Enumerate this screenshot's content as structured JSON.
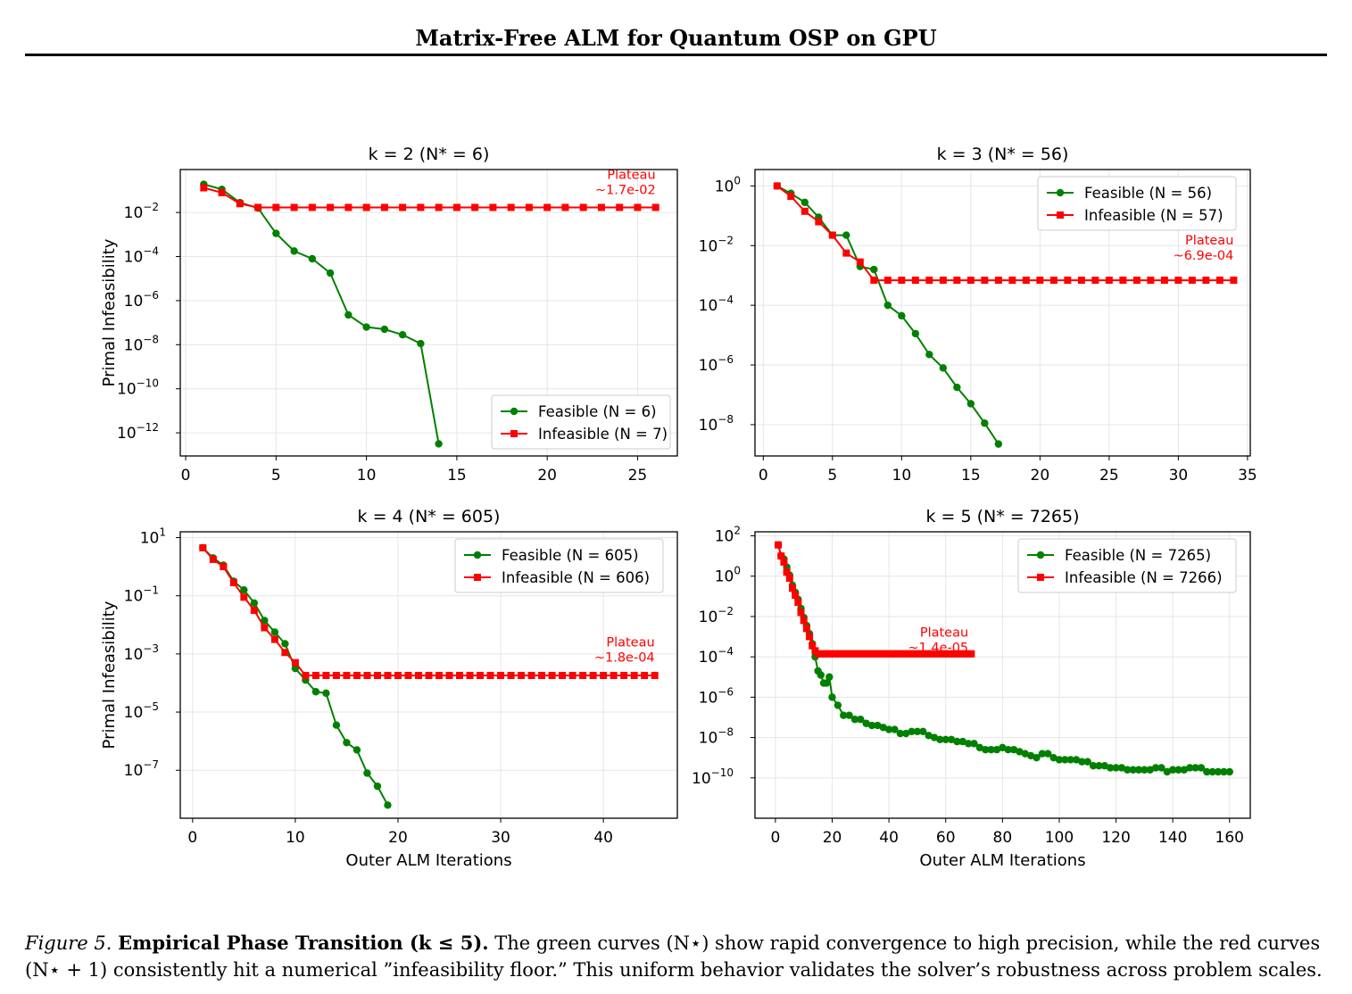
{
  "header": {
    "title": "Matrix-Free ALM for Quantum OSP on GPU"
  },
  "caption": {
    "label": "Figure 5.",
    "bold_text": "Empirical Phase Transition (k ≤ 5).",
    "text": " The green curves (N⋆) show rapid convergence to high precision, while the red curves (N⋆ + 1) consistently hit a numerical ”infeasibility floor.” This uniform behavior validates the solver’s robustness across problem scales."
  },
  "colors": {
    "feasible": "#008000",
    "infeasible": "#ff0000",
    "grid": "#e6e6e6",
    "plateau_text": "#ff0000"
  },
  "chart_data": [
    {
      "type": "line",
      "title": "k = 2 (N* = 6)",
      "xlabel": "",
      "ylabel": "Primal Infeasibility",
      "yscale": "log",
      "xlim": [
        -0.3,
        27.2
      ],
      "ylim_exp": [
        -13.05,
        -0.05
      ],
      "xticks": [
        0,
        5,
        10,
        15,
        20,
        25
      ],
      "yticks_exp": [
        -12,
        -10,
        -8,
        -6,
        -4,
        -2
      ],
      "grid": true,
      "legend": "bottom-right",
      "annotation": {
        "text": [
          "Plateau",
          "~1.7e-02"
        ],
        "x": 26,
        "y_exp": -1.2
      },
      "series": [
        {
          "name": "Feasible (N = 6)",
          "color": "#008000",
          "marker": "circle",
          "x": [
            1,
            2,
            3,
            4,
            5,
            6,
            7,
            8,
            9,
            10,
            11,
            12,
            13,
            14
          ],
          "y_exp": [
            -0.72,
            -0.95,
            -1.55,
            -1.8,
            -2.95,
            -3.75,
            -4.1,
            -4.75,
            -6.65,
            -7.2,
            -7.3,
            -7.55,
            -7.95,
            -12.5
          ]
        },
        {
          "name": "Infeasible (N = 7)",
          "color": "#ff0000",
          "marker": "square",
          "x": [
            1,
            2,
            3,
            4,
            5,
            6,
            7,
            8,
            9,
            10,
            11,
            12,
            13,
            14,
            15,
            16,
            17,
            18,
            19,
            20,
            21,
            22,
            23,
            24,
            25,
            26
          ],
          "y_exp": [
            -0.88,
            -1.1,
            -1.6,
            -1.77,
            -1.77,
            -1.77,
            -1.77,
            -1.77,
            -1.77,
            -1.77,
            -1.77,
            -1.77,
            -1.77,
            -1.77,
            -1.77,
            -1.77,
            -1.77,
            -1.77,
            -1.77,
            -1.77,
            -1.77,
            -1.77,
            -1.77,
            -1.77,
            -1.77,
            -1.77
          ]
        }
      ]
    },
    {
      "type": "line",
      "title": "k = 3 (N* = 56)",
      "xlabel": "",
      "ylabel": "",
      "yscale": "log",
      "xlim": [
        -0.6,
        35.2
      ],
      "ylim_exp": [
        -9.05,
        0.55
      ],
      "xticks": [
        0,
        5,
        10,
        15,
        20,
        25,
        30,
        35
      ],
      "yticks_exp": [
        -8,
        -6,
        -4,
        -2,
        0
      ],
      "grid": true,
      "legend": "top-right",
      "annotation": {
        "text": [
          "Plateau",
          "~6.9e-04"
        ],
        "x": 34,
        "y_exp": -2.5
      },
      "series": [
        {
          "name": "Feasible (N = 56)",
          "color": "#008000",
          "marker": "circle",
          "x": [
            1,
            2,
            3,
            4,
            5,
            6,
            7,
            8,
            9,
            10,
            11,
            12,
            13,
            14,
            15,
            16,
            17
          ],
          "y_exp": [
            0,
            -0.25,
            -0.55,
            -1.05,
            -1.65,
            -1.65,
            -2.7,
            -2.8,
            -4.0,
            -4.35,
            -4.95,
            -5.65,
            -6.1,
            -6.75,
            -7.3,
            -7.95,
            -8.65
          ]
        },
        {
          "name": "Infeasible (N = 57)",
          "color": "#ff0000",
          "marker": "square",
          "x": [
            1,
            2,
            3,
            4,
            5,
            6,
            7,
            8,
            9,
            10,
            11,
            12,
            13,
            14,
            15,
            16,
            17,
            18,
            19,
            20,
            21,
            22,
            23,
            24,
            25,
            26,
            27,
            28,
            29,
            30,
            31,
            32,
            33,
            34
          ],
          "y_exp": [
            0,
            -0.35,
            -0.85,
            -1.2,
            -1.65,
            -2.25,
            -2.55,
            -3.16,
            -3.16,
            -3.16,
            -3.16,
            -3.16,
            -3.16,
            -3.16,
            -3.16,
            -3.16,
            -3.16,
            -3.16,
            -3.16,
            -3.16,
            -3.16,
            -3.16,
            -3.16,
            -3.16,
            -3.16,
            -3.16,
            -3.16,
            -3.16,
            -3.16,
            -3.16,
            -3.16,
            -3.16,
            -3.16,
            -3.16
          ]
        }
      ]
    },
    {
      "type": "line",
      "title": "k = 4 (N* = 605)",
      "xlabel": "Outer ALM Iterations",
      "ylabel": "Primal Infeasibility",
      "yscale": "log",
      "xlim": [
        -1.2,
        47.2
      ],
      "ylim_exp": [
        -8.65,
        1.2
      ],
      "xticks": [
        0,
        10,
        20,
        30,
        40
      ],
      "yticks_exp": [
        -7,
        -5,
        -3,
        -1,
        1
      ],
      "grid": true,
      "legend": "top-right",
      "annotation": {
        "text": [
          "Plateau",
          "~1.8e-04"
        ],
        "x": 45,
        "y_exp": -3.3
      },
      "series": [
        {
          "name": "Feasible (N = 605)",
          "color": "#008000",
          "marker": "circle",
          "x": [
            1,
            2,
            3,
            4,
            5,
            6,
            7,
            8,
            9,
            10,
            11,
            12,
            13,
            14,
            15,
            16,
            17,
            18,
            19
          ],
          "y_exp": [
            0.65,
            0.3,
            0.05,
            -0.5,
            -0.8,
            -1.25,
            -1.85,
            -2.25,
            -2.65,
            -3.5,
            -3.9,
            -4.3,
            -4.35,
            -5.45,
            -6.05,
            -6.3,
            -7.1,
            -7.55,
            -8.2
          ]
        },
        {
          "name": "Infeasible (N = 606)",
          "color": "#ff0000",
          "marker": "square",
          "x": [
            1,
            2,
            3,
            4,
            5,
            6,
            7,
            8,
            9,
            10,
            11,
            12,
            13,
            14,
            15,
            16,
            17,
            18,
            19,
            20,
            21,
            22,
            23,
            24,
            25,
            26,
            27,
            28,
            29,
            30,
            31,
            32,
            33,
            34,
            35,
            36,
            37,
            38,
            39,
            40,
            41,
            42,
            43,
            44,
            45
          ],
          "y_exp": [
            0.65,
            0.25,
            0,
            -0.55,
            -1.05,
            -1.5,
            -2.1,
            -2.5,
            -2.95,
            -3.3,
            -3.74,
            -3.74,
            -3.74,
            -3.74,
            -3.74,
            -3.74,
            -3.74,
            -3.74,
            -3.74,
            -3.74,
            -3.74,
            -3.74,
            -3.74,
            -3.74,
            -3.74,
            -3.74,
            -3.74,
            -3.74,
            -3.74,
            -3.74,
            -3.74,
            -3.74,
            -3.74,
            -3.74,
            -3.74,
            -3.74,
            -3.74,
            -3.74,
            -3.74,
            -3.74,
            -3.74,
            -3.74,
            -3.74,
            -3.74,
            -3.74
          ]
        }
      ]
    },
    {
      "type": "line",
      "title": "k = 5 (N* = 7265)",
      "xlabel": "Outer ALM Iterations",
      "ylabel": "",
      "yscale": "log",
      "xlim": [
        -7.2,
        167.3
      ],
      "ylim_exp": [
        -12.0,
        2.2
      ],
      "xticks": [
        0,
        20,
        40,
        60,
        80,
        100,
        120,
        140,
        160
      ],
      "yticks_exp": [
        -10,
        -8,
        -6,
        -4,
        -2,
        0,
        2
      ],
      "grid": true,
      "legend": "top-right",
      "annotation": {
        "text": [
          "Plateau",
          "~1.4e-05"
        ],
        "x": 68,
        "y_exp": -3.8
      },
      "series": [
        {
          "name": "Feasible (N = 7265)",
          "color": "#008000",
          "marker": "circle",
          "x": [
            1,
            2,
            3,
            4,
            5,
            6,
            7,
            8,
            9,
            10,
            11,
            12,
            13,
            14,
            15,
            16,
            17,
            18,
            19,
            20,
            22,
            24,
            26,
            28,
            30,
            32,
            34,
            36,
            38,
            40,
            42,
            44,
            46,
            48,
            50,
            52,
            54,
            56,
            58,
            60,
            62,
            64,
            66,
            68,
            70,
            72,
            74,
            76,
            78,
            80,
            82,
            84,
            86,
            88,
            90,
            92,
            94,
            96,
            98,
            100,
            102,
            104,
            106,
            108,
            110,
            112,
            114,
            116,
            118,
            120,
            122,
            124,
            126,
            128,
            130,
            132,
            134,
            136,
            138,
            140,
            142,
            144,
            146,
            148,
            150,
            152,
            154,
            156,
            158,
            160
          ],
          "y_exp": [
            1.55,
            1.0,
            0.85,
            0.45,
            0.05,
            -0.45,
            -0.8,
            -1.15,
            -1.6,
            -2.05,
            -2.45,
            -2.85,
            -3.35,
            -4.0,
            -4.7,
            -4.9,
            -5.3,
            -5.3,
            -5.0,
            -6.0,
            -6.4,
            -6.9,
            -6.9,
            -7.1,
            -7.1,
            -7.3,
            -7.4,
            -7.4,
            -7.5,
            -7.6,
            -7.6,
            -7.8,
            -7.8,
            -7.7,
            -7.7,
            -7.7,
            -7.9,
            -8.0,
            -8.1,
            -8.1,
            -8.1,
            -8.2,
            -8.2,
            -8.3,
            -8.3,
            -8.5,
            -8.6,
            -8.6,
            -8.6,
            -8.5,
            -8.6,
            -8.6,
            -8.7,
            -8.8,
            -8.9,
            -9.0,
            -8.8,
            -8.8,
            -9.0,
            -9.1,
            -9.1,
            -9.1,
            -9.1,
            -9.2,
            -9.2,
            -9.4,
            -9.4,
            -9.4,
            -9.5,
            -9.5,
            -9.5,
            -9.6,
            -9.6,
            -9.6,
            -9.6,
            -9.6,
            -9.5,
            -9.5,
            -9.7,
            -9.6,
            -9.6,
            -9.6,
            -9.5,
            -9.5,
            -9.5,
            -9.7,
            -9.7,
            -9.7,
            -9.7,
            -9.7
          ]
        },
        {
          "name": "Infeasible (N = 7266)",
          "color": "#ff0000",
          "marker": "square",
          "x": [
            1,
            2,
            3,
            4,
            5,
            6,
            7,
            8,
            9,
            10,
            11,
            12,
            13,
            14,
            15,
            16,
            17,
            18,
            19,
            20,
            21,
            22,
            23,
            24,
            25,
            26,
            27,
            28,
            29,
            30,
            31,
            32,
            33,
            34,
            35,
            36,
            37,
            38,
            39,
            40,
            41,
            42,
            43,
            44,
            45,
            46,
            47,
            48,
            49,
            50,
            51,
            52,
            53,
            54,
            55,
            56,
            57,
            58,
            59,
            60,
            61,
            62,
            63,
            64,
            65,
            66,
            67,
            68,
            69
          ],
          "y_exp": [
            1.55,
            1.0,
            0.7,
            0.2,
            -0.1,
            -0.6,
            -0.95,
            -1.3,
            -1.8,
            -2.2,
            -2.6,
            -3.0,
            -3.45,
            -3.7,
            -3.85,
            -3.85,
            -3.85,
            -3.85,
            -3.85,
            -3.85,
            -3.85,
            -3.85,
            -3.85,
            -3.85,
            -3.85,
            -3.85,
            -3.85,
            -3.85,
            -3.85,
            -3.85,
            -3.85,
            -3.85,
            -3.85,
            -3.85,
            -3.85,
            -3.85,
            -3.85,
            -3.85,
            -3.85,
            -3.85,
            -3.85,
            -3.85,
            -3.85,
            -3.85,
            -3.85,
            -3.85,
            -3.85,
            -3.85,
            -3.85,
            -3.85,
            -3.85,
            -3.85,
            -3.85,
            -3.85,
            -3.85,
            -3.85,
            -3.85,
            -3.85,
            -3.85,
            -3.85,
            -3.85,
            -3.85,
            -3.85,
            -3.85,
            -3.85,
            -3.85,
            -3.85,
            -3.85,
            -3.85
          ]
        }
      ]
    }
  ]
}
